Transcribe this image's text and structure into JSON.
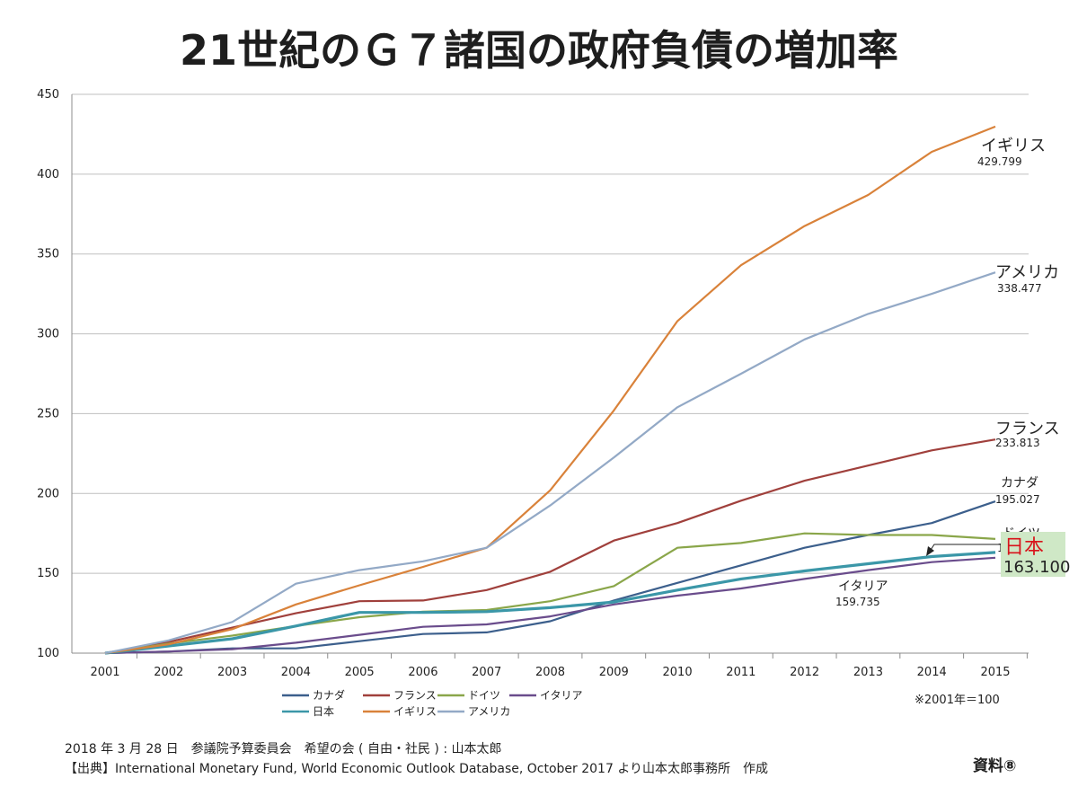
{
  "chart_data": {
    "type": "line",
    "title": "21世紀のＧ７諸国の政府負債の増加率",
    "x": [
      "2001",
      "2002",
      "2003",
      "2004",
      "2005",
      "2006",
      "2007",
      "2008",
      "2009",
      "2010",
      "2011",
      "2012",
      "2013",
      "2014",
      "2015"
    ],
    "ylim": [
      100,
      450
    ],
    "yticks": [
      100,
      150,
      200,
      250,
      300,
      350,
      400,
      450
    ],
    "grid": true,
    "legend_position": "bottom",
    "series": [
      {
        "name": "カナダ",
        "color": "#3c5f8c",
        "values": [
          100,
          101,
          103,
          103,
          107.5,
          112,
          113,
          120,
          133,
          144,
          155,
          166,
          174,
          181.5,
          195.027
        ]
      },
      {
        "name": "フランス",
        "color": "#a0403c",
        "values": [
          100,
          107,
          116,
          125,
          132.5,
          133,
          139.5,
          151,
          170.5,
          181.5,
          195.5,
          208,
          217.5,
          227,
          233.813
        ]
      },
      {
        "name": "ドイツ",
        "color": "#8aa64a",
        "values": [
          100,
          106,
          111,
          117,
          122.5,
          126,
          127,
          132.5,
          142,
          166,
          169,
          175,
          174,
          174,
          171.505
        ]
      },
      {
        "name": "イタリア",
        "color": "#6a4c8c",
        "values": [
          100,
          101,
          102.5,
          106.5,
          111.5,
          116.5,
          118,
          123,
          130.5,
          136,
          140.5,
          146.5,
          152,
          157,
          159.735
        ]
      },
      {
        "name": "日本",
        "color": "#3b97a8",
        "values": [
          100,
          104.5,
          109,
          117,
          125.5,
          125.5,
          126,
          128.5,
          132,
          139.5,
          146.5,
          151.5,
          156,
          160.5,
          163.1
        ]
      },
      {
        "name": "イギリス",
        "color": "#d9823a",
        "values": [
          100,
          105.5,
          115,
          130.5,
          142.5,
          154,
          166,
          202,
          252,
          308,
          343,
          367.5,
          387,
          414,
          429.799
        ]
      },
      {
        "name": "アメリカ",
        "color": "#93a9c6",
        "values": [
          100,
          108,
          119.5,
          143.5,
          152,
          157.5,
          166,
          192.5,
          222.5,
          254,
          275,
          296.5,
          312.5,
          325,
          338.477
        ]
      }
    ],
    "annotations": [
      {
        "series": "イギリス",
        "label": "イギリス",
        "value": "429.799"
      },
      {
        "series": "アメリカ",
        "label": "アメリカ",
        "value": "338.477"
      },
      {
        "series": "フランス",
        "label": "フランス",
        "value": "233.813"
      },
      {
        "series": "カナダ",
        "label": "カナダ",
        "value": "195.027"
      },
      {
        "series": "ドイツ",
        "label": "ドイツ",
        "value": "171.505"
      },
      {
        "series": "日本",
        "label": "日本",
        "value": "163.100"
      },
      {
        "series": "イタリア",
        "label": "イタリア",
        "value": "159.735"
      }
    ],
    "note": "※2001年＝100"
  },
  "footer": {
    "line1": "2018 年 3 月 28 日　参議院予算委員会　希望の会 ( 自由・社民 ) : 山本太郎",
    "line2": "【出典】International Monetary Fund, World Economic Outlook Database, October 2017 より山本太郎事務所　作成",
    "doc_label": "資料⑧"
  },
  "colors": {
    "grid": "#bfbfbf",
    "axis": "#8c8c8c",
    "japan_label_bg": "#cfe8c6",
    "japan_label_text": "#d8141b"
  }
}
